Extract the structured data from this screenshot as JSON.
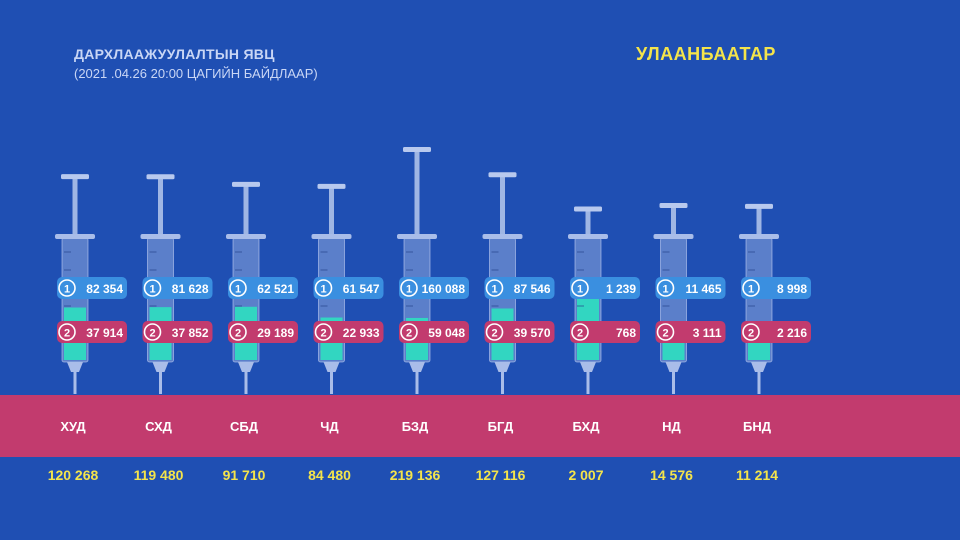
{
  "header": {
    "title": "ДАРХЛААЖУУЛАЛТЫН ЯВЦ",
    "subtitle": "(2021 .04.26    20:00 ЦАГИЙН БАЙДЛААР)",
    "city": "УЛААНБААТАР"
  },
  "colors": {
    "background": "#1f4fb3",
    "band": "#c23b6e",
    "dose1_badge": "#3a8fe0",
    "dose2_badge": "#c23b6e",
    "dose2_fill": "#2ee0c0",
    "total_text": "#f4e44b"
  },
  "chart_data": {
    "type": "bar",
    "categories": [
      "ХУД",
      "СХД",
      "СБД",
      "ЧД",
      "БЗД",
      "БГД",
      "БХД",
      "НД",
      "БНД"
    ],
    "dose_markers": [
      "1",
      "2"
    ],
    "series": [
      {
        "values": [
          82354,
          81628,
          62521,
          61547,
          160088,
          87546,
          1239,
          11465,
          8998
        ],
        "labels": [
          "82 354",
          "81 628",
          "62 521",
          "61 547",
          "160 088",
          "87 546",
          "1 239",
          "11 465",
          "8 998"
        ]
      },
      {
        "values": [
          37914,
          37852,
          29189,
          22933,
          59048,
          39570,
          768,
          3111,
          2216
        ],
        "labels": [
          "37 914",
          "37 852",
          "29 189",
          "22 933",
          "59 048",
          "39 570",
          "768",
          "3 111",
          "2 216"
        ]
      }
    ],
    "totals": [
      120268,
      119480,
      91710,
      84480,
      219136,
      127116,
      2007,
      14576,
      11214
    ],
    "total_labels": [
      "120 268",
      "119 480",
      "91 710",
      "84 480",
      "219 136",
      "127 116",
      "2 007",
      "14 576",
      "11 214"
    ]
  }
}
